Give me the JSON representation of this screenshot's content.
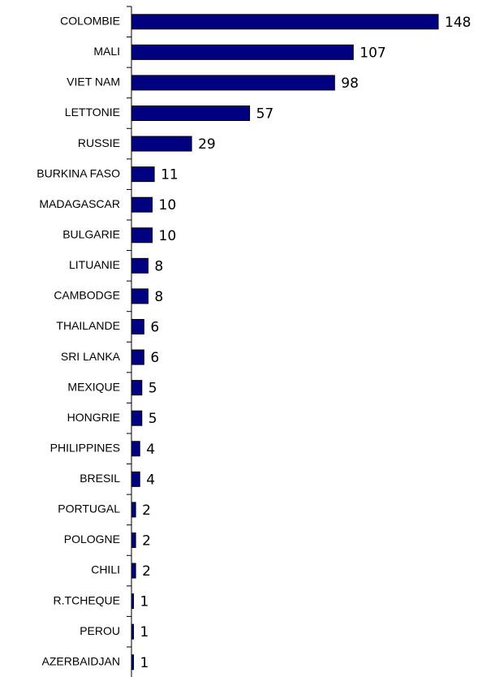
{
  "chart_data": {
    "type": "barh",
    "categories": [
      "COLOMBIE",
      "MALI",
      "VIET NAM",
      "LETTONIE",
      "RUSSIE",
      "BURKINA FASO",
      "MADAGASCAR",
      "BULGARIE",
      "LITUANIE",
      "CAMBODGE",
      "THAILANDE",
      "SRI LANKA",
      "MEXIQUE",
      "HONGRIE",
      "PHILIPPINES",
      "BRESIL",
      "PORTUGAL",
      "POLOGNE",
      "CHILI",
      "R.TCHEQUE",
      "PEROU",
      "AZERBAIDJAN"
    ],
    "values": [
      148,
      107,
      98,
      57,
      29,
      11,
      10,
      10,
      8,
      8,
      6,
      6,
      5,
      5,
      4,
      4,
      2,
      2,
      2,
      1,
      1,
      1
    ],
    "color": "#000080"
  }
}
